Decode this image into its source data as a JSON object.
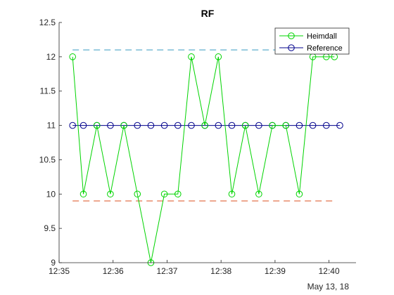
{
  "chart_data": {
    "type": "line",
    "title": "RF",
    "xlabel": "",
    "ylabel": "",
    "x_tick_labels": [
      "12:35",
      "12:36",
      "12:37",
      "12:38",
      "12:39",
      "12:40"
    ],
    "x_ticks_min": [
      0,
      1,
      2,
      3,
      4,
      5
    ],
    "xlim_min": [
      0,
      5.5
    ],
    "date_label": "May 13, 18",
    "ylim": [
      9,
      12.5
    ],
    "y_ticks": [
      9,
      9.5,
      10,
      10.5,
      11,
      11.5,
      12,
      12.5
    ],
    "y_tick_labels": [
      "9",
      "9.5",
      "10",
      "10.5",
      "11",
      "11.5",
      "12",
      "12.5"
    ],
    "grid": false,
    "legend_position": "top-right",
    "series": [
      {
        "name": "Heimdall",
        "color": "#00d400",
        "marker": "circle",
        "x": [
          0.25,
          0.45,
          0.7,
          0.95,
          1.2,
          1.45,
          1.7,
          1.95,
          2.2,
          2.45,
          2.7,
          2.95,
          3.2,
          3.45,
          3.7,
          3.95,
          4.2,
          4.45,
          4.7,
          4.95,
          5.1
        ],
        "y": [
          12,
          10,
          11,
          10,
          11,
          10,
          9,
          10,
          10,
          12,
          11,
          12,
          10,
          11,
          10,
          11,
          11,
          10,
          12,
          12,
          12
        ]
      },
      {
        "name": "Reference",
        "color": "#00008b",
        "marker": "circle",
        "x": [
          0.25,
          0.45,
          0.7,
          0.95,
          1.2,
          1.45,
          1.7,
          1.95,
          2.2,
          2.45,
          2.7,
          2.95,
          3.2,
          3.45,
          3.7,
          3.95,
          4.2,
          4.45,
          4.7,
          4.95,
          5.2
        ],
        "y": [
          11,
          11,
          11,
          11,
          11,
          11,
          11,
          11,
          11,
          11,
          11,
          11,
          11,
          11,
          11,
          11,
          11,
          11,
          11,
          11,
          11
        ]
      }
    ],
    "reference_lines": [
      {
        "y": 12.1,
        "color": "#4da6c8",
        "style": "dashed"
      },
      {
        "y": 9.9,
        "color": "#e0653a",
        "style": "dashed"
      }
    ]
  }
}
